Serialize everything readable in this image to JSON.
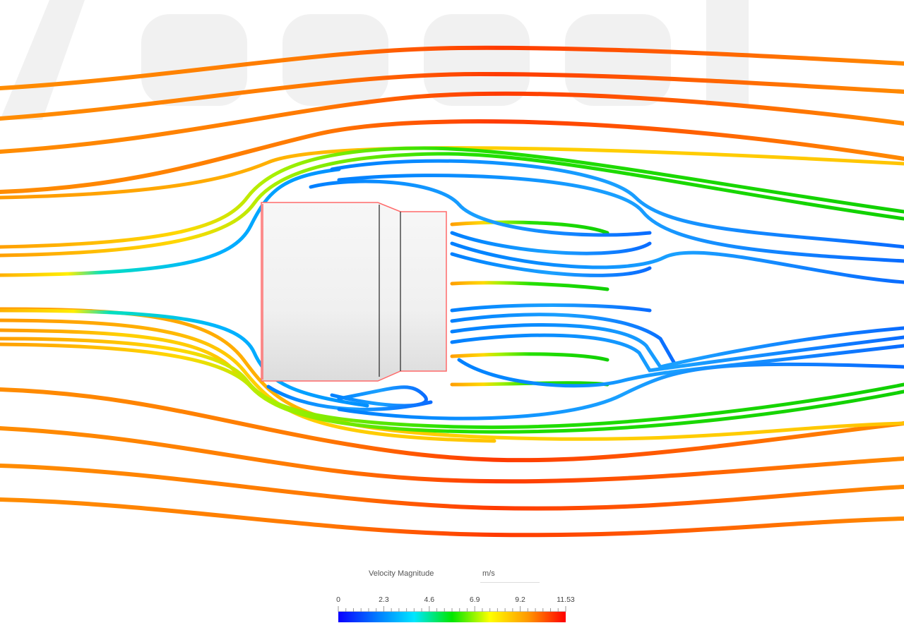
{
  "legend": {
    "title": "Velocity Magnitude",
    "unit": "m/s",
    "min": 0,
    "max": 11.53,
    "ticks": [
      "0",
      "2.3",
      "4.6",
      "6.9",
      "9.2",
      "11.53"
    ],
    "colormap": [
      "#0a00ff",
      "#0078ff",
      "#00e6ff",
      "#00e600",
      "#ffff00",
      "#ff9900",
      "#ff0000"
    ]
  },
  "viewport": {
    "object": "cylindrical-body",
    "body_fill": "#f2f2f2",
    "edge_highlight_color": "#ff5a5a",
    "visualization": "streamlines"
  }
}
